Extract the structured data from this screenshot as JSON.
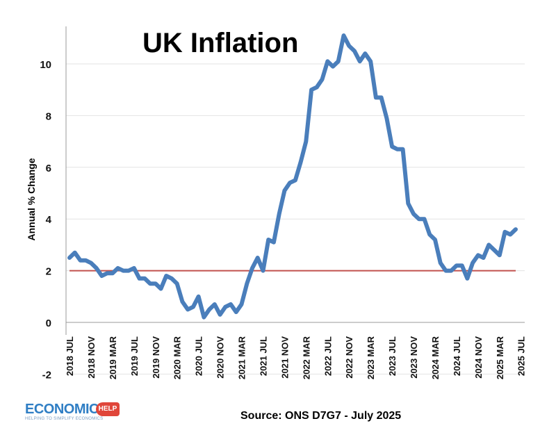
{
  "chart_data": {
    "type": "line",
    "title": "UK Inflation",
    "ylabel": "Annual % Change",
    "xlabel": "",
    "ylim": [
      -2,
      11.5
    ],
    "yticks": [
      -2,
      0,
      2,
      4,
      6,
      8,
      10
    ],
    "grid": "horizontal",
    "line_color": "#4a7ebb",
    "target_line": {
      "value": 2,
      "color": "#c0504d"
    },
    "xtick_labels": [
      "2018 JUL",
      "2018 NOV",
      "2019 MAR",
      "2019 JUL",
      "2019 NOV",
      "2020 MAR",
      "2020 JUL",
      "2020 NOV",
      "2021 MAR",
      "2021 JUL",
      "2021 NOV",
      "2022 MAR",
      "2022 JUL",
      "2022 NOV",
      "2023 MAR",
      "2023 JUL",
      "2023 NOV",
      "2024 MAR",
      "2024 JUL",
      "2024 NOV",
      "2025 MAR",
      "2025 JUL"
    ],
    "series": [
      {
        "values": [
          2.5,
          2.7,
          2.4,
          2.4,
          2.3,
          2.1,
          1.8,
          1.9,
          1.9,
          2.1,
          2.0,
          2.0,
          2.1,
          1.7,
          1.7,
          1.5,
          1.5,
          1.3,
          1.8,
          1.7,
          1.5,
          0.8,
          0.5,
          0.6,
          1.0,
          0.2,
          0.5,
          0.7,
          0.3,
          0.6,
          0.7,
          0.4,
          0.7,
          1.5,
          2.1,
          2.5,
          2.0,
          3.2,
          3.1,
          4.2,
          5.1,
          5.4,
          5.5,
          6.2,
          7.0,
          9.0,
          9.1,
          9.4,
          10.1,
          9.9,
          10.1,
          11.1,
          10.7,
          10.5,
          10.1,
          10.4,
          10.1,
          8.7,
          8.7,
          7.9,
          6.8,
          6.7,
          6.7,
          4.6,
          4.2,
          4.0,
          4.0,
          3.4,
          3.2,
          2.3,
          2.0,
          2.0,
          2.2,
          2.2,
          1.7,
          2.3,
          2.6,
          2.5,
          3.0,
          2.8,
          2.6,
          3.5,
          3.4,
          3.6
        ]
      }
    ]
  },
  "footer": {
    "source": "Source: ONS D7G7 - July 2025",
    "logo_word": "ECONOMICS",
    "logo_badge": "HELP",
    "logo_tagline": "HELPING TO SIMPLIFY ECONOMICS"
  }
}
